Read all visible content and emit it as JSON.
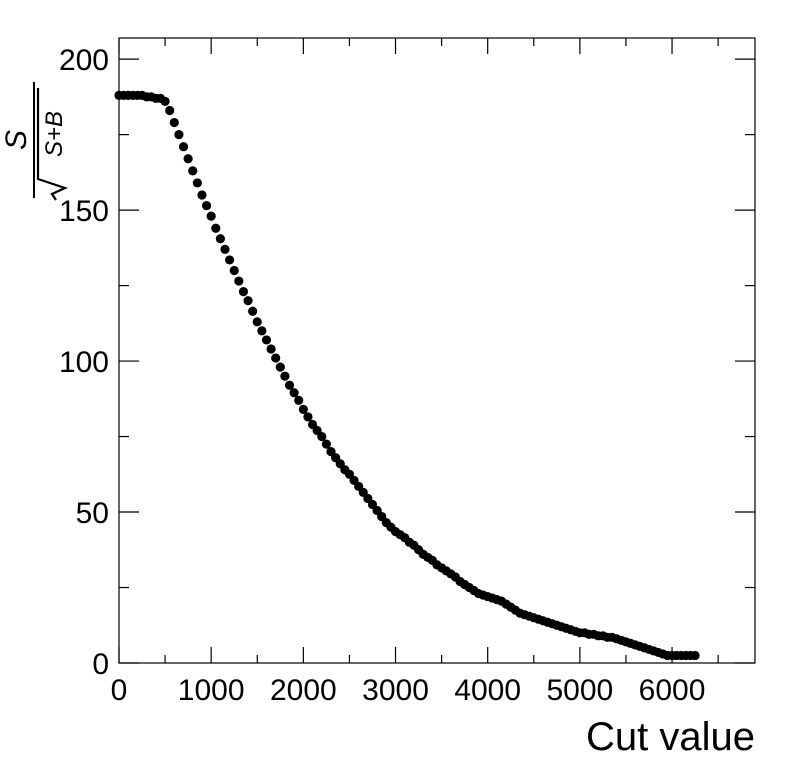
{
  "chart_data": {
    "type": "scatter",
    "title": "",
    "xlabel": "Cut value",
    "ylabel": {
      "numerator": "S",
      "denominator": "S+B"
    },
    "xlim": [
      0,
      6900
    ],
    "ylim": [
      0,
      207
    ],
    "x_ticks": [
      0,
      1000,
      2000,
      3000,
      4000,
      5000,
      6000
    ],
    "x_tick_labels": [
      "0",
      "1000",
      "2000",
      "3000",
      "4000",
      "5000",
      "6000"
    ],
    "y_ticks": [
      0,
      50,
      100,
      150,
      200
    ],
    "y_tick_labels": [
      "0",
      "50",
      "100",
      "150",
      "200"
    ],
    "grid": false,
    "legend": "none",
    "marker_color": "#000000",
    "series": [
      {
        "x": [
          0,
          50,
          100,
          150,
          200,
          250,
          300,
          350,
          400,
          450,
          500,
          550,
          600,
          650,
          700,
          750,
          800,
          850,
          900,
          950,
          1000,
          1050,
          1100,
          1150,
          1200,
          1250,
          1300,
          1350,
          1400,
          1450,
          1500,
          1550,
          1600,
          1650,
          1700,
          1750,
          1800,
          1850,
          1900,
          1950,
          2000,
          2050,
          2100,
          2150,
          2200,
          2250,
          2300,
          2350,
          2400,
          2450,
          2500,
          2550,
          2600,
          2650,
          2700,
          2750,
          2800,
          2850,
          2900,
          2950,
          3000,
          3050,
          3100,
          3150,
          3200,
          3250,
          3300,
          3350,
          3400,
          3450,
          3500,
          3550,
          3600,
          3650,
          3700,
          3750,
          3800,
          3850,
          3900,
          3950,
          4000,
          4050,
          4100,
          4150,
          4200,
          4250,
          4300,
          4350,
          4400,
          4450,
          4500,
          4550,
          4600,
          4650,
          4700,
          4750,
          4800,
          4850,
          4900,
          4950,
          5000,
          5050,
          5100,
          5150,
          5200,
          5250,
          5300,
          5350,
          5400,
          5450,
          5500,
          5550,
          5600,
          5650,
          5700,
          5750,
          5800,
          5850,
          5900,
          5950,
          6000,
          6050,
          6100,
          6150,
          6200,
          6250
        ],
        "y": [
          188,
          188,
          188,
          188,
          188,
          188,
          187.5,
          187.5,
          187,
          187,
          186,
          183,
          179,
          175,
          171,
          167,
          163,
          159,
          155,
          151.5,
          148,
          144,
          140.5,
          137,
          133.5,
          130,
          126.5,
          123,
          120,
          116.5,
          113,
          110,
          107,
          104,
          101,
          98,
          95,
          92,
          89.5,
          87,
          84,
          81.5,
          79,
          77,
          75,
          72.5,
          70,
          68,
          66,
          64,
          62.5,
          60.5,
          58.5,
          56.5,
          54.5,
          52.5,
          50.5,
          48.5,
          46.5,
          45,
          43.5,
          42.5,
          41.5,
          40,
          39,
          37.5,
          36,
          35,
          34,
          32.5,
          31.5,
          30.5,
          29.5,
          28.5,
          27,
          26,
          25,
          24,
          23,
          22.5,
          22,
          21.5,
          21,
          20.5,
          19.5,
          18.5,
          17.5,
          16.5,
          16,
          15.5,
          15,
          14.5,
          14,
          13.5,
          13,
          12.5,
          12,
          11.5,
          11,
          10.5,
          10,
          10,
          9.5,
          9.5,
          9,
          9,
          8.5,
          8.5,
          8,
          7.5,
          7,
          6.5,
          6,
          5.5,
          5,
          4.5,
          4,
          3.5,
          3,
          2.5,
          2.5,
          2.5,
          2.5,
          2.5,
          2.5,
          2.5
        ]
      }
    ]
  }
}
